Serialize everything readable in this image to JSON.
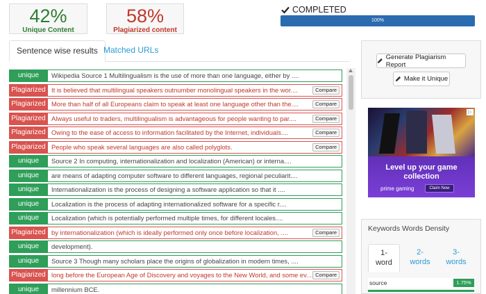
{
  "stats": {
    "unique_pct": "42%",
    "unique_label": "Unique Content",
    "plag_pct": "58%",
    "plag_label": "Plagiarized content"
  },
  "status": {
    "label": "COMPLETED",
    "progress_text": "100%",
    "progress_value": 100
  },
  "tabs": {
    "sentence": "Sentence wise results",
    "urls": "Matched URLs"
  },
  "compare_label": "Compare",
  "rows": [
    {
      "type": "unique",
      "badge": "unique",
      "text": "Wikipedia Source 1 Multilingualism is the use of more than one language, either by ...."
    },
    {
      "type": "plag",
      "badge": "Plagiarized",
      "text": "It is believed that multilingual speakers outnumber monolingual speakers in the wor...."
    },
    {
      "type": "plag",
      "badge": "Plagiarized",
      "text": "More than half of all Europeans claim to speak at least one language other than the...."
    },
    {
      "type": "plag",
      "badge": "Plagiarized",
      "text": "Always useful to traders, multilingualism is advantageous for people wanting to par...."
    },
    {
      "type": "plag",
      "badge": "Plagiarized",
      "text": "Owing to the ease of access to information facilitated by the Internet, individuals...."
    },
    {
      "type": "plag",
      "badge": "Plagiarized",
      "text": "People who speak several languages are also called polyglots."
    },
    {
      "type": "unique",
      "badge": "unique",
      "text": "Source 2 In computing, internationalization and localization (American) or interna...."
    },
    {
      "type": "unique",
      "badge": "unique",
      "text": "are means of adapting computer software to different languages, regional peculiarit...."
    },
    {
      "type": "unique",
      "badge": "unique",
      "text": "Internationalization is the process of designing a software application so that it ...."
    },
    {
      "type": "unique",
      "badge": "unique",
      "text": "Localization is the process of adapting internationalized software for a specific r...."
    },
    {
      "type": "unique",
      "badge": "unique",
      "text": "Localization (which is potentially performed multiple times, for different locales...."
    },
    {
      "type": "plag",
      "badge": "Plagiarized",
      "text": "by internationalization (which is ideally performed only once before localization, ...."
    },
    {
      "type": "unique",
      "badge": "unique",
      "text": "development)."
    },
    {
      "type": "unique",
      "badge": "unique",
      "text": "Source 3 Though many scholars place the origins of globalization in modern times, ...."
    },
    {
      "type": "plag",
      "badge": "Plagiarized",
      "text": "long before the European Age of Discovery and voyages to the New World, and some ev...."
    },
    {
      "type": "unique",
      "badge": "unique",
      "text": "millennium BCE."
    }
  ],
  "actions": {
    "report": "Generate Plagiarism Report",
    "unique": "Make it Unique"
  },
  "ad": {
    "headline": "Level up your game collection",
    "brand": "prime gaming",
    "claim": "Claim Now",
    "corner_icon": "ad-info-icon"
  },
  "keywords": {
    "title": "Keywords Words Density",
    "tabs": [
      "1-word",
      "2-words",
      "3-words"
    ],
    "tab1_a": "1-",
    "tab1_b": "word",
    "tab2_a": "2-",
    "tab2_b": "words",
    "tab3_a": "3-",
    "tab3_b": "words",
    "first_word": "source",
    "first_value": "1.75%"
  },
  "colors": {
    "unique": "#2e9e59",
    "plagiarized": "#d9534f",
    "progress": "#2b6cb0",
    "link": "#2b9bd6"
  }
}
